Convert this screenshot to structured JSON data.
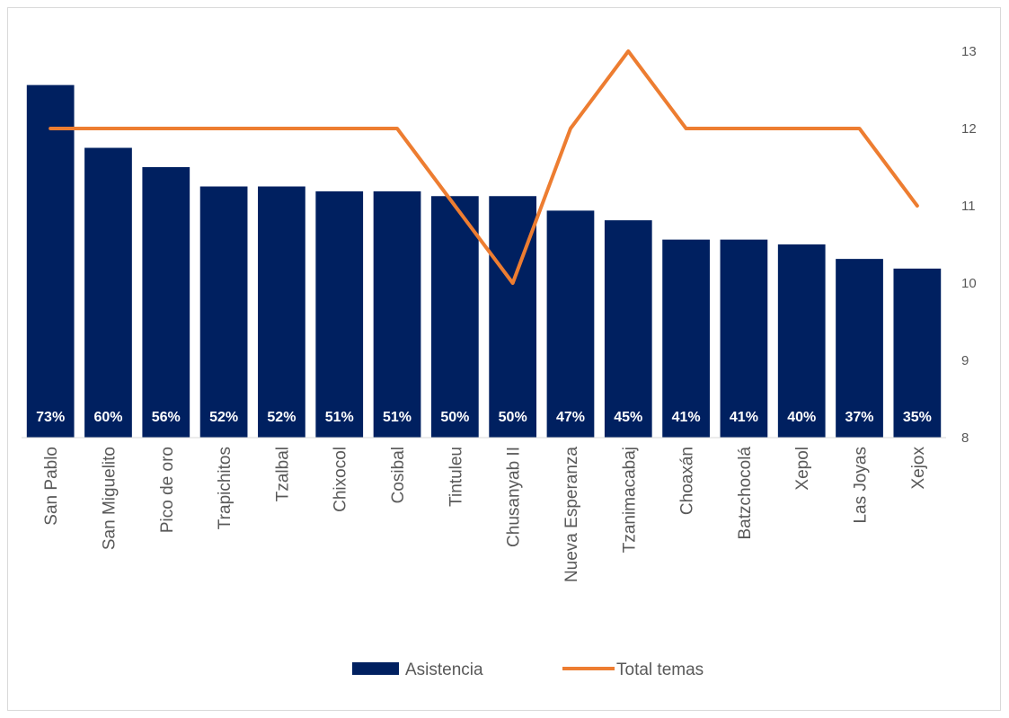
{
  "chart_data": {
    "type": "bar",
    "title": "",
    "categories": [
      "San Pablo",
      "San Miguelito",
      "Pico de oro",
      "Trapichitos",
      "Tzalbal",
      "Chixocol",
      "Cosibal",
      "Tintuleu",
      "Chusanyab II",
      "Nueva Esperanza",
      "Tzanimacabaj",
      "Choaxán",
      "Batzchocolá",
      "Xepol",
      "Las Joyas",
      "Xejox"
    ],
    "series": [
      {
        "name": "Asistencia",
        "type": "bar",
        "axis": "primary",
        "color": "#002060",
        "values": [
          0.73,
          0.6,
          0.56,
          0.52,
          0.52,
          0.51,
          0.51,
          0.5,
          0.5,
          0.47,
          0.45,
          0.41,
          0.41,
          0.4,
          0.37,
          0.35
        ],
        "labels": [
          "73%",
          "60%",
          "56%",
          "52%",
          "52%",
          "51%",
          "51%",
          "50%",
          "50%",
          "47%",
          "45%",
          "41%",
          "41%",
          "40%",
          "37%",
          "35%"
        ]
      },
      {
        "name": "Total temas",
        "type": "line",
        "axis": "secondary",
        "color": "#ED7D31",
        "values": [
          12,
          12,
          12,
          12,
          12,
          12,
          12,
          11,
          10,
          12,
          13,
          12,
          12,
          12,
          12,
          11
        ]
      }
    ],
    "primary_ylim": [
      0,
      0.8
    ],
    "secondary_ylim": [
      8,
      13
    ],
    "secondary_ticks": [
      "8",
      "9",
      "10",
      "11",
      "12",
      "13"
    ],
    "grid": false,
    "legend_position": "bottom"
  }
}
